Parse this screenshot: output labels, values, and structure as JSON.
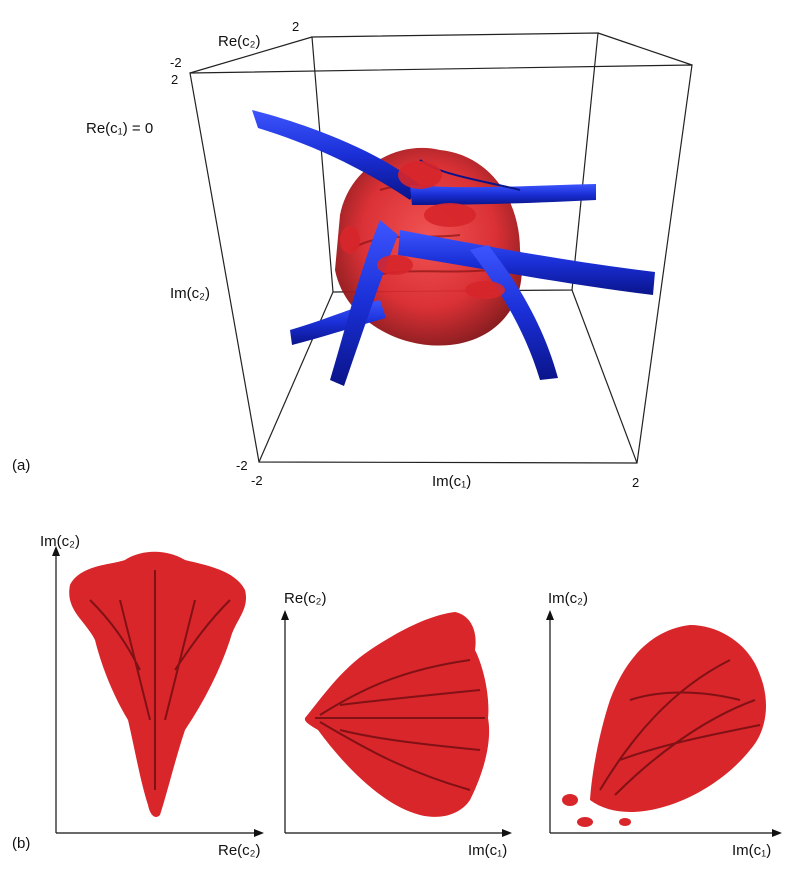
{
  "panel_a": {
    "panel_label": "(a)",
    "slice_label": "Re(c₁) = 0",
    "axis_re_c2": "Re(c₂)",
    "axis_im_c2": "Im(c₂)",
    "axis_im_c1": "Im(c₁)",
    "ticks": {
      "re_c2_max": "2",
      "re_c2_min": "-2",
      "im_c2_max": "2",
      "im_c2_min": "-2",
      "im_c1_min": "-2",
      "im_c1_max": "2"
    },
    "colors": {
      "blue_surface": "#1a2fd6",
      "red_surface": "#d8262b"
    }
  },
  "panel_b": {
    "panel_label": "(b)",
    "views": [
      {
        "y_label": "Im(c₂)",
        "x_label": "Re(c₂)"
      },
      {
        "y_label": "Re(c₂)",
        "x_label": "Im(c₁)"
      },
      {
        "y_label": "Im(c₂)",
        "x_label": "Im(c₁)"
      }
    ],
    "colors": {
      "red_surface": "#d8262b",
      "dark_shade": "#6b0d10"
    }
  }
}
